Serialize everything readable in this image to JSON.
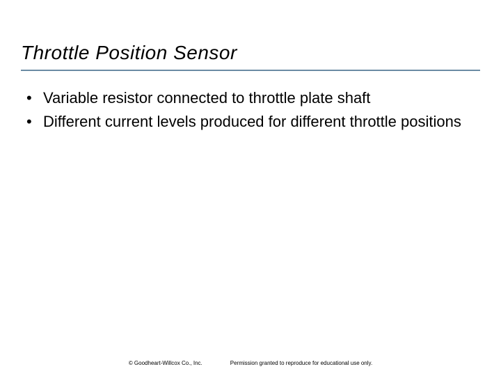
{
  "slide": {
    "title": "Throttle Position Sensor",
    "bullets": [
      "Variable resistor connected to throttle plate shaft",
      "Different current levels produced for different throttle positions"
    ]
  },
  "footer": {
    "copyright": "© Goodheart-Willcox Co., Inc.",
    "permission": "Permission granted to reproduce for educational use only."
  },
  "colors": {
    "title_text": "#000000",
    "title_underline": "#6b8ba4",
    "body_text": "#000000",
    "background": "#ffffff"
  },
  "typography": {
    "title_fontsize": 28,
    "title_style": "italic",
    "body_fontsize": 22,
    "footer_fontsize": 8
  }
}
